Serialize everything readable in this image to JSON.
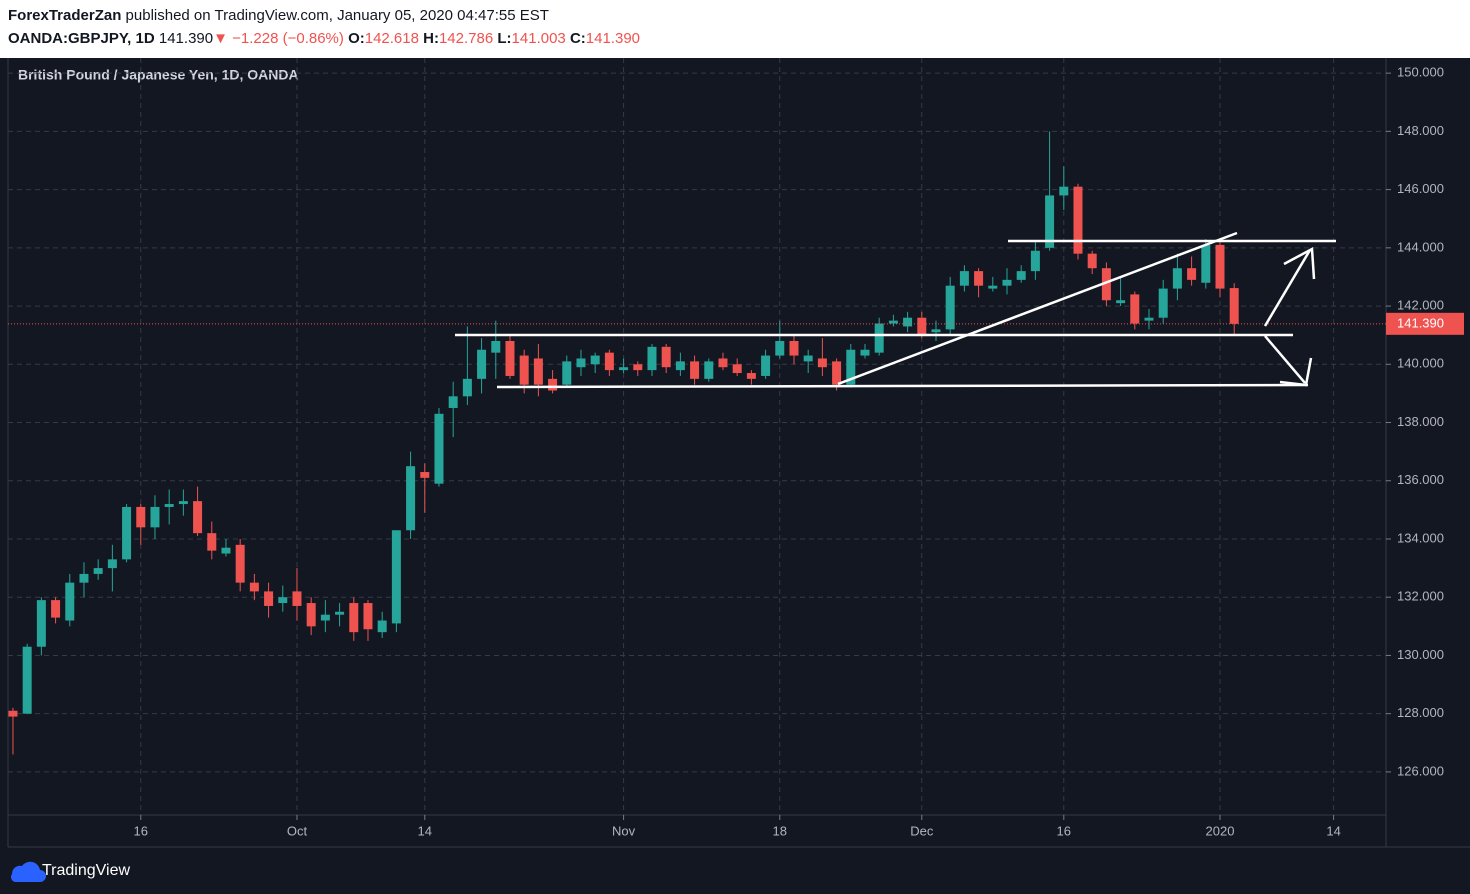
{
  "header": {
    "author": "ForexTraderZan",
    "published": "published on TradingView.com, January 05, 2020 04:47:55 EST",
    "symbol": "OANDA:GBPJPY, 1D",
    "price": "141.390",
    "arrow": "▼",
    "change": "−1.228 (−0.86%)",
    "ohlc": [
      {
        "label": "O:",
        "value": "142.618"
      },
      {
        "label": "H:",
        "value": "142.786"
      },
      {
        "label": "L:",
        "value": "141.003"
      },
      {
        "label": "C:",
        "value": "141.390"
      }
    ]
  },
  "chart_data": {
    "type": "candlestick",
    "title": "British Pound / Japanese Yen, 1D, OANDA",
    "up_color": "#26a69a",
    "down_color": "#ef5350",
    "grid": true,
    "x": [
      0,
      1,
      2,
      3,
      4,
      5,
      6,
      7,
      8,
      9,
      10,
      11,
      12,
      13,
      14,
      15,
      16,
      17,
      18,
      19,
      20,
      21,
      22,
      23,
      24,
      25,
      26,
      27,
      28,
      29,
      30,
      31,
      32,
      33,
      34,
      35,
      36,
      37,
      38,
      39,
      40,
      41,
      42,
      43,
      44,
      45,
      46,
      47,
      48,
      49,
      50,
      51,
      52,
      53,
      54,
      55,
      56,
      57,
      58,
      59,
      60,
      61,
      62,
      63,
      64,
      65,
      66,
      67,
      68,
      69,
      70,
      71,
      72,
      73,
      74,
      75,
      76,
      77,
      78,
      79,
      80,
      81,
      82,
      83,
      84,
      85,
      86
    ],
    "open": [
      128.1,
      128.0,
      130.3,
      131.9,
      131.2,
      132.5,
      132.8,
      133.0,
      133.3,
      135.1,
      134.4,
      135.1,
      135.2,
      135.3,
      134.2,
      133.5,
      133.8,
      132.5,
      132.2,
      131.8,
      132.2,
      131.8,
      131.2,
      131.4,
      131.8,
      131.8,
      130.8,
      131.1,
      134.3,
      136.3,
      135.9,
      138.5,
      138.9,
      139.5,
      140.4,
      140.8,
      140.3,
      140.2,
      139.5,
      139.3,
      139.9,
      140.0,
      140.4,
      139.8,
      140.0,
      139.8,
      140.6,
      139.8,
      140.1,
      139.5,
      140.2,
      140.0,
      139.7,
      139.6,
      140.3,
      140.8,
      140.1,
      140.2,
      140.1,
      139.3,
      140.3,
      140.4,
      141.4,
      141.3,
      141.6,
      141.1,
      141.2,
      142.7,
      143.2,
      142.6,
      142.7,
      142.9,
      143.2,
      144.0,
      145.8,
      146.1,
      143.8,
      143.3,
      142.1,
      142.4,
      141.5,
      141.6,
      142.6,
      143.3,
      142.8,
      144.1,
      142.618
    ],
    "high": [
      128.2,
      130.4,
      132.0,
      132.0,
      132.8,
      133.2,
      133.3,
      133.8,
      135.2,
      135.2,
      135.5,
      135.7,
      135.7,
      135.8,
      134.6,
      134.0,
      134.0,
      132.8,
      132.5,
      132.4,
      133.0,
      132.0,
      131.9,
      131.8,
      132.0,
      131.9,
      131.5,
      134.3,
      137.0,
      136.6,
      138.5,
      139.4,
      141.3,
      140.9,
      141.5,
      141.0,
      140.5,
      140.7,
      139.8,
      140.3,
      140.5,
      140.4,
      140.5,
      140.2,
      140.1,
      140.7,
      140.7,
      140.4,
      140.3,
      140.2,
      140.4,
      140.2,
      139.8,
      140.5,
      141.5,
      141.0,
      140.5,
      140.9,
      140.2,
      140.7,
      140.7,
      141.6,
      141.7,
      141.8,
      141.8,
      141.5,
      143.0,
      143.4,
      143.3,
      143.0,
      143.3,
      143.4,
      144.2,
      148.0,
      146.8,
      146.2,
      143.9,
      143.5,
      143.0,
      142.5,
      141.9,
      142.9,
      143.8,
      143.7,
      144.3,
      144.3,
      142.786
    ],
    "low": [
      126.6,
      128.0,
      130.0,
      131.1,
      131.0,
      132.0,
      132.6,
      132.2,
      133.2,
      133.8,
      134.0,
      134.5,
      134.8,
      134.1,
      133.3,
      133.4,
      132.2,
      131.9,
      131.3,
      131.5,
      131.2,
      130.7,
      130.8,
      131.0,
      130.5,
      130.5,
      130.6,
      130.8,
      134.0,
      134.9,
      135.8,
      137.5,
      138.6,
      139.0,
      139.5,
      139.5,
      139.0,
      138.9,
      139.0,
      139.2,
      139.6,
      139.7,
      139.6,
      139.7,
      139.6,
      139.6,
      139.7,
      139.6,
      139.3,
      139.4,
      139.8,
      139.6,
      139.3,
      139.5,
      140.2,
      140.0,
      139.7,
      139.6,
      139.1,
      139.2,
      140.2,
      140.3,
      141.3,
      141.1,
      140.9,
      140.8,
      141.0,
      142.5,
      142.3,
      142.5,
      142.4,
      142.8,
      142.9,
      143.9,
      145.3,
      143.6,
      143.1,
      142.0,
      142.0,
      141.2,
      141.2,
      141.4,
      142.2,
      142.7,
      142.6,
      142.3,
      141.003
    ],
    "close": [
      127.9,
      130.3,
      131.9,
      131.3,
      132.5,
      132.8,
      133.0,
      133.3,
      135.1,
      134.4,
      135.1,
      135.2,
      135.3,
      134.2,
      133.6,
      133.7,
      132.5,
      132.2,
      131.7,
      132.0,
      131.7,
      131.0,
      131.4,
      131.5,
      130.8,
      130.9,
      131.2,
      134.3,
      136.5,
      136.1,
      138.3,
      138.9,
      139.5,
      140.5,
      140.8,
      139.6,
      139.3,
      139.3,
      139.1,
      140.1,
      140.2,
      140.3,
      139.8,
      139.9,
      139.8,
      140.6,
      139.9,
      140.1,
      139.5,
      140.1,
      139.9,
      139.7,
      139.5,
      140.3,
      140.8,
      140.3,
      140.3,
      139.9,
      139.3,
      140.5,
      140.5,
      141.4,
      141.5,
      141.6,
      141.0,
      141.2,
      142.7,
      143.2,
      142.7,
      142.7,
      142.9,
      143.2,
      143.9,
      145.8,
      146.1,
      143.8,
      143.3,
      142.2,
      142.2,
      141.4,
      141.6,
      142.6,
      143.3,
      142.9,
      144.1,
      142.6,
      141.39
    ],
    "last_price": 141.39,
    "last_price_label": "141.390",
    "last_price_color": "#ef5350",
    "xlim": [
      -0.35,
      96.69
    ],
    "xticks": [
      {
        "value": 9,
        "label": "16"
      },
      {
        "value": 20,
        "label": "Oct"
      },
      {
        "value": 29,
        "label": "14"
      },
      {
        "value": 43,
        "label": "Nov"
      },
      {
        "value": 54,
        "label": "18"
      },
      {
        "value": 64,
        "label": "Dec"
      },
      {
        "value": 74,
        "label": "16"
      },
      {
        "value": 85,
        "label": "2020"
      },
      {
        "value": 93,
        "label": "14"
      }
    ],
    "ylim": [
      124.52,
      150.52
    ],
    "yticks": [
      {
        "value": 126,
        "label": "126.000"
      },
      {
        "value": 128,
        "label": "128.000"
      },
      {
        "value": 130,
        "label": "130.000"
      },
      {
        "value": 132,
        "label": "132.000"
      },
      {
        "value": 134,
        "label": "134.000"
      },
      {
        "value": 136,
        "label": "136.000"
      },
      {
        "value": 138,
        "label": "138.000"
      },
      {
        "value": 140,
        "label": "140.000"
      },
      {
        "value": 142,
        "label": "142.000"
      },
      {
        "value": 144,
        "label": "144.000"
      },
      {
        "value": 146,
        "label": "146.000"
      },
      {
        "value": 148,
        "label": "148.000"
      },
      {
        "value": 150,
        "label": "150.000"
      }
    ]
  },
  "footer": {
    "brand": "TradingView"
  }
}
